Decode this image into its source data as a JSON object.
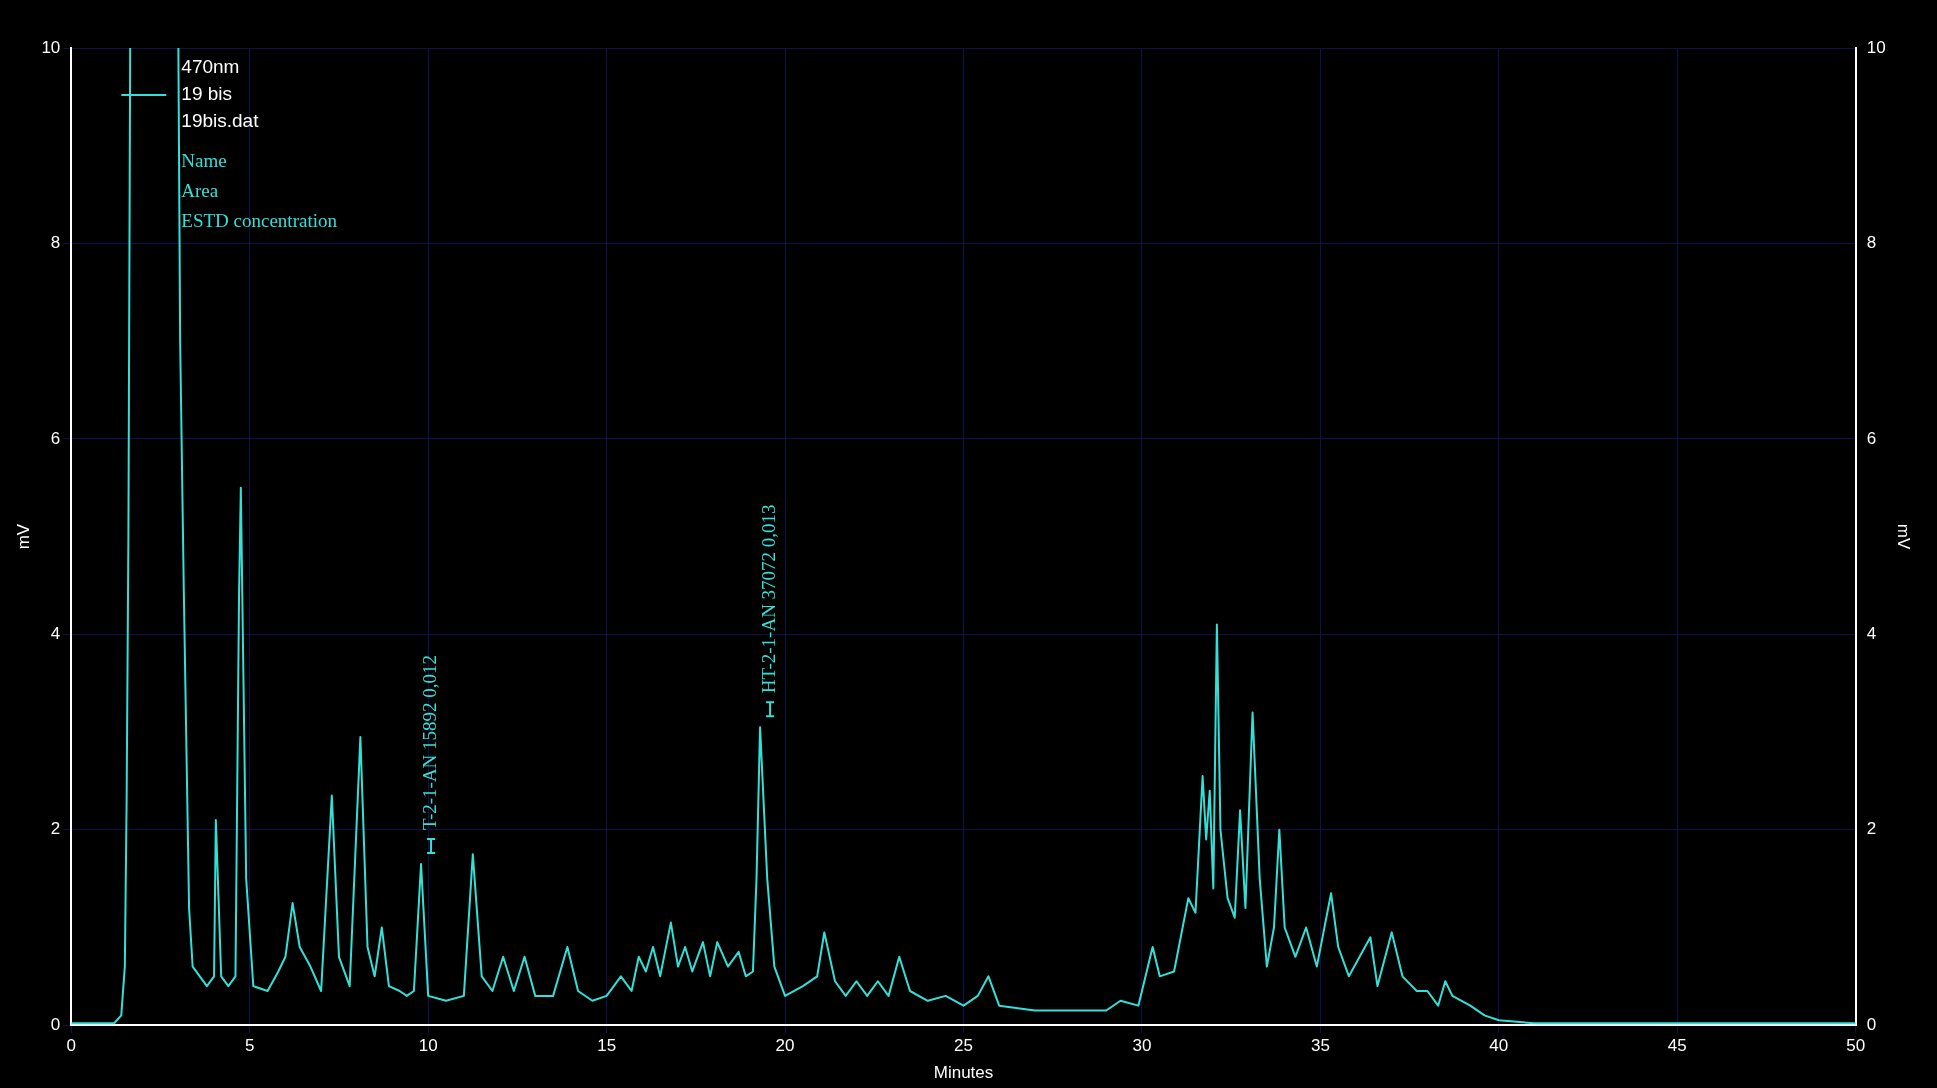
{
  "chart_data": {
    "type": "line",
    "legend_title": "470nm",
    "subtitle": "19bis.dat",
    "xlabel": "Minutes",
    "ylabel": "mV",
    "y2label": "mV",
    "xlim": [
      0,
      50
    ],
    "xticks": [
      0,
      5,
      10,
      15,
      20,
      25,
      30,
      35,
      40,
      45,
      50
    ],
    "ylim": [
      0,
      10
    ],
    "yticks": [
      0,
      2,
      4,
      6,
      8,
      10
    ],
    "y2lim": [
      0,
      10
    ],
    "y2ticks": [
      0,
      2,
      4,
      6,
      8,
      10
    ],
    "grid": true,
    "legend": "top left",
    "annotations": [
      "Name",
      "Area",
      "ESTD concentration",
      {
        "text": "T-2-1-AN 15892 0,012",
        "x": 9.8,
        "y": 1.65
      },
      {
        "text": "HT-2-1-AN 37072 0,013",
        "x": 19.3,
        "y": 3.05
      }
    ],
    "series": [
      {
        "name": "19 bis",
        "color": "#33e0d8",
        "x": [
          0,
          1.2,
          1.4,
          1.5,
          1.55,
          1.6,
          1.65,
          2.3,
          3.0,
          3.05,
          3.15,
          3.3,
          3.4,
          3.6,
          3.8,
          4.0,
          4.05,
          4.2,
          4.4,
          4.6,
          4.7,
          4.75,
          4.9,
          5.1,
          5.5,
          5.8,
          6.0,
          6.2,
          6.4,
          6.7,
          7.0,
          7.3,
          7.5,
          7.8,
          8.1,
          8.3,
          8.5,
          8.7,
          8.9,
          9.2,
          9.4,
          9.6,
          9.8,
          10.0,
          10.5,
          11.0,
          11.25,
          11.5,
          11.8,
          12.1,
          12.4,
          12.7,
          13.0,
          13.5,
          13.9,
          14.2,
          14.6,
          15.0,
          15.4,
          15.7,
          15.9,
          16.1,
          16.3,
          16.5,
          16.8,
          17.0,
          17.2,
          17.4,
          17.7,
          17.9,
          18.1,
          18.4,
          18.7,
          18.9,
          19.1,
          19.2,
          19.3,
          19.5,
          19.7,
          20.0,
          20.5,
          20.9,
          21.1,
          21.4,
          21.7,
          22.0,
          22.3,
          22.6,
          22.9,
          23.2,
          23.5,
          24.0,
          24.5,
          25.0,
          25.4,
          25.7,
          26.0,
          27.0,
          28.0,
          29.0,
          29.4,
          29.9,
          30.3,
          30.5,
          30.9,
          31.3,
          31.5,
          31.7,
          31.8,
          31.9,
          32.0,
          32.1,
          32.2,
          32.4,
          32.6,
          32.75,
          32.9,
          33.1,
          33.3,
          33.5,
          33.7,
          33.85,
          34.0,
          34.3,
          34.6,
          34.9,
          35.3,
          35.5,
          35.8,
          36.1,
          36.4,
          36.6,
          37.0,
          37.3,
          37.7,
          38.0,
          38.3,
          38.5,
          38.7,
          39.2,
          39.6,
          40.0,
          41.0,
          50.0
        ],
        "values": [
          0.02,
          0.02,
          0.1,
          0.6,
          2.3,
          5,
          10,
          null,
          10,
          7,
          4.5,
          1.2,
          0.6,
          0.5,
          0.4,
          0.5,
          2.1,
          0.5,
          0.4,
          0.5,
          4.4,
          5.5,
          1.5,
          0.4,
          0.35,
          0.55,
          0.7,
          1.25,
          0.8,
          0.6,
          0.35,
          2.35,
          0.7,
          0.4,
          2.95,
          0.8,
          0.5,
          1.0,
          0.4,
          0.35,
          0.3,
          0.35,
          1.65,
          0.3,
          0.25,
          0.3,
          1.75,
          0.5,
          0.35,
          0.7,
          0.35,
          0.7,
          0.3,
          0.3,
          0.8,
          0.35,
          0.25,
          0.3,
          0.5,
          0.35,
          0.7,
          0.55,
          0.8,
          0.5,
          1.05,
          0.6,
          0.8,
          0.55,
          0.85,
          0.5,
          0.85,
          0.6,
          0.75,
          0.5,
          0.55,
          1.5,
          3.05,
          1.5,
          0.6,
          0.3,
          0.4,
          0.5,
          0.95,
          0.45,
          0.3,
          0.45,
          0.3,
          0.45,
          0.3,
          0.7,
          0.35,
          0.25,
          0.3,
          0.2,
          0.3,
          0.5,
          0.2,
          0.15,
          0.15,
          0.15,
          0.25,
          0.2,
          0.8,
          0.5,
          0.55,
          1.3,
          1.15,
          2.55,
          1.9,
          2.4,
          1.4,
          4.1,
          2.0,
          1.3,
          1.1,
          2.2,
          1.2,
          3.2,
          1.5,
          0.6,
          1.0,
          2.0,
          1.0,
          0.7,
          1.0,
          0.6,
          1.35,
          0.8,
          0.5,
          0.7,
          0.9,
          0.4,
          0.95,
          0.5,
          0.35,
          0.35,
          0.2,
          0.45,
          0.3,
          0.2,
          0.1,
          0.05,
          0.02,
          0.02
        ]
      }
    ]
  }
}
